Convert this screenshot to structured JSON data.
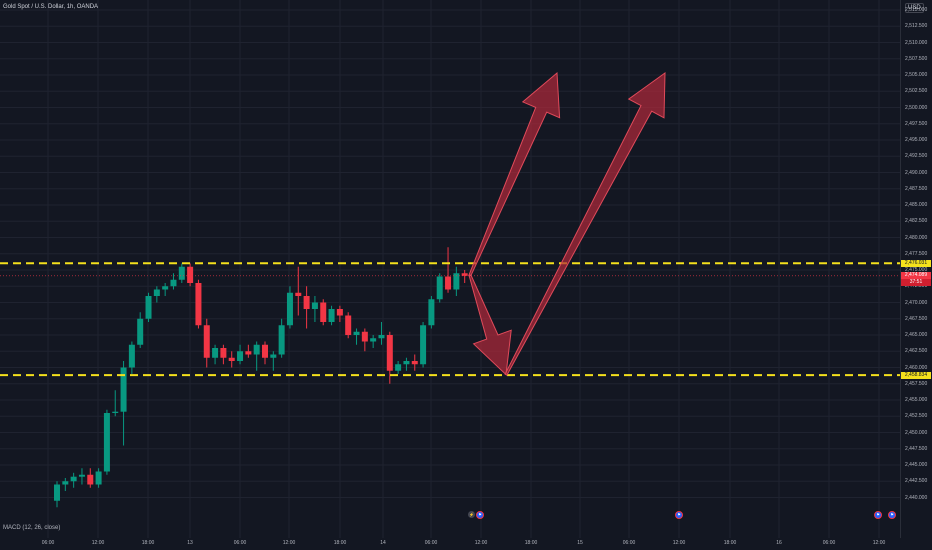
{
  "header": {
    "title": "Gold Spot / U.S. Dollar, 1h, OANDA",
    "currency": "USD"
  },
  "indicator": {
    "label": "MACD (12, 26, close)"
  },
  "price_scale": {
    "ticks": [
      "2,515.000",
      "2,512.500",
      "2,510.000",
      "2,507.500",
      "2,505.000",
      "2,502.500",
      "2,500.000",
      "2,497.500",
      "2,495.000",
      "2,492.500",
      "2,490.000",
      "2,487.500",
      "2,485.000",
      "2,482.500",
      "2,480.000",
      "2,477.500",
      "2,475.000",
      "2,472.500",
      "2,470.000",
      "2,467.500",
      "2,465.000",
      "2,462.500",
      "2,460.000",
      "2,457.500",
      "2,455.000",
      "2,452.500",
      "2,450.000",
      "2,447.500",
      "2,445.000",
      "2,442.500",
      "2,440.000"
    ],
    "resistance_label": "2,476.031",
    "support_label": "2,458.834",
    "current_price_label": "2,474.089",
    "countdown_label": "37:51"
  },
  "time_scale": {
    "labels": [
      "06:00",
      "12:00",
      "18:00",
      "13",
      "06:00",
      "12:00",
      "18:00",
      "14",
      "06:00",
      "12:00",
      "18:00",
      "15",
      "06:00",
      "12:00",
      "18:00",
      "16",
      "06:00",
      "12:00"
    ]
  },
  "colors": {
    "background": "#131722",
    "grid": "#1f2330",
    "bull": "#089981",
    "bear": "#f23645",
    "level_line": "#f5e11c",
    "arrow_fill": "#b22a3a"
  },
  "drawings": {
    "levels": [
      2476.031,
      2458.834
    ],
    "arrows": [
      {
        "from": 2474.2,
        "to": 2458.9
      },
      {
        "from": 2474.2,
        "to": 2505.3
      },
      {
        "from": 2458.9,
        "to": 2505.3
      }
    ]
  },
  "events": [
    {
      "type": "dividend",
      "glyph": "⚡"
    },
    {
      "type": "economic",
      "glyph": "⚑"
    },
    {
      "type": "economic",
      "glyph": "⚑"
    },
    {
      "type": "economic",
      "glyph": "⚑"
    },
    {
      "type": "economic",
      "glyph": "⚑"
    }
  ],
  "chart_data": {
    "type": "candlestick",
    "symbol": "Gold Spot / U.S. Dollar",
    "interval": "1h",
    "ylim": [
      2438.5,
      2516.5
    ],
    "candles": [
      [
        2439.5,
        2442.5,
        2438.5,
        2442.0
      ],
      [
        2442.0,
        2443.0,
        2441.0,
        2442.5
      ],
      [
        2442.5,
        2443.8,
        2441.5,
        2443.2
      ],
      [
        2443.2,
        2444.5,
        2442.0,
        2443.5
      ],
      [
        2443.5,
        2444.5,
        2441.5,
        2442.0
      ],
      [
        2442.0,
        2444.5,
        2441.5,
        2444.0
      ],
      [
        2444.0,
        2453.5,
        2443.5,
        2453.0
      ],
      [
        2453.0,
        2456.5,
        2452.5,
        2453.2
      ],
      [
        2453.2,
        2461.0,
        2448.0,
        2460.0
      ],
      [
        2460.0,
        2464.0,
        2459.0,
        2463.5
      ],
      [
        2463.5,
        2468.5,
        2463.0,
        2467.5
      ],
      [
        2467.5,
        2471.5,
        2467.0,
        2471.0
      ],
      [
        2471.0,
        2472.5,
        2470.0,
        2472.0
      ],
      [
        2472.0,
        2473.0,
        2471.0,
        2472.5
      ],
      [
        2472.5,
        2474.5,
        2472.0,
        2473.5
      ],
      [
        2473.5,
        2476.0,
        2473.0,
        2475.5
      ],
      [
        2475.5,
        2476.0,
        2472.5,
        2473.0
      ],
      [
        2473.0,
        2473.5,
        2466.0,
        2466.5
      ],
      [
        2466.5,
        2467.5,
        2460.0,
        2461.5
      ],
      [
        2461.5,
        2463.5,
        2460.5,
        2463.0
      ],
      [
        2463.0,
        2463.5,
        2460.5,
        2461.5
      ],
      [
        2461.5,
        2462.5,
        2460.0,
        2461.0
      ],
      [
        2461.0,
        2463.5,
        2460.5,
        2462.5
      ],
      [
        2462.5,
        2463.5,
        2461.5,
        2462.0
      ],
      [
        2462.0,
        2464.0,
        2459.5,
        2463.5
      ],
      [
        2463.5,
        2464.0,
        2460.5,
        2461.5
      ],
      [
        2461.5,
        2462.5,
        2459.5,
        2462.0
      ],
      [
        2462.0,
        2467.5,
        2461.5,
        2466.5
      ],
      [
        2466.5,
        2472.5,
        2466.0,
        2471.5
      ],
      [
        2471.5,
        2475.5,
        2468.0,
        2471.0
      ],
      [
        2471.0,
        2472.5,
        2466.0,
        2469.0
      ],
      [
        2469.0,
        2471.0,
        2467.0,
        2470.0
      ],
      [
        2470.0,
        2470.5,
        2466.5,
        2467.0
      ],
      [
        2467.0,
        2469.5,
        2466.5,
        2469.0
      ],
      [
        2469.0,
        2469.5,
        2467.0,
        2468.0
      ],
      [
        2468.0,
        2468.5,
        2464.5,
        2465.0
      ],
      [
        2465.0,
        2466.0,
        2463.5,
        2465.5
      ],
      [
        2465.5,
        2466.0,
        2462.5,
        2464.0
      ],
      [
        2464.0,
        2465.0,
        2463.0,
        2464.5
      ],
      [
        2464.5,
        2467.0,
        2463.5,
        2465.0
      ],
      [
        2465.0,
        2465.5,
        2457.5,
        2459.5
      ],
      [
        2459.5,
        2461.0,
        2459.0,
        2460.5
      ],
      [
        2460.5,
        2461.5,
        2459.5,
        2461.0
      ],
      [
        2461.0,
        2462.0,
        2459.5,
        2460.5
      ],
      [
        2460.5,
        2467.0,
        2460.0,
        2466.5
      ],
      [
        2466.5,
        2471.0,
        2466.0,
        2470.5
      ],
      [
        2470.5,
        2474.5,
        2470.0,
        2474.0
      ],
      [
        2474.0,
        2478.5,
        2471.5,
        2472.0
      ],
      [
        2472.0,
        2475.5,
        2471.0,
        2474.5
      ],
      [
        2474.5,
        2475.0,
        2473.0,
        2474.1
      ]
    ]
  }
}
